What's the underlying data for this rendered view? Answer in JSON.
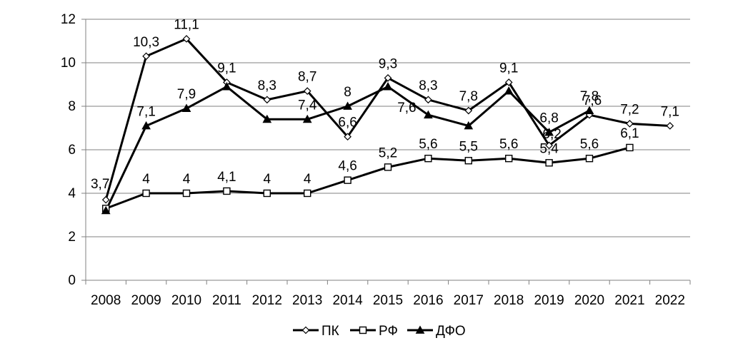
{
  "chart_data": {
    "type": "line",
    "x": [
      "2008",
      "2009",
      "2010",
      "2011",
      "2012",
      "2013",
      "2014",
      "2015",
      "2016",
      "2017",
      "2018",
      "2019",
      "2020",
      "2021",
      "2022"
    ],
    "ylim": [
      0,
      12
    ],
    "y_ticks": [
      "0",
      "2",
      "4",
      "6",
      "8",
      "10",
      "12"
    ],
    "grid": true,
    "legend_position": "bottom",
    "series": [
      {
        "name": "ПК",
        "marker": "diamond-open",
        "values": [
          3.7,
          10.3,
          11.1,
          9.1,
          8.3,
          8.7,
          6.6,
          9.3,
          8.3,
          7.8,
          9.1,
          6.2,
          7.6,
          7.2,
          7.1
        ],
        "labels": [
          "3,7",
          "10,3",
          "11,1",
          "9,1",
          "8,3",
          "8,7",
          "6,6",
          "9,3",
          "8,3",
          "7,8",
          "9,1",
          "6,2",
          "7,6",
          "7,2",
          "7,1"
        ]
      },
      {
        "name": "РФ",
        "marker": "square-open",
        "values": [
          3.3,
          4,
          4,
          4.1,
          4,
          4,
          4.6,
          5.2,
          5.6,
          5.5,
          5.6,
          5.4,
          5.6,
          6.1,
          null
        ],
        "labels": [
          "",
          "4",
          "4",
          "4,1",
          "4",
          "4",
          "4,6",
          "5,2",
          "5,6",
          "5,5",
          "5,6",
          "5,4",
          "5,6",
          "6,1",
          ""
        ]
      },
      {
        "name": "ДФО",
        "marker": "triangle-filled",
        "values": [
          3.2,
          7.1,
          7.9,
          8.9,
          7.4,
          7.4,
          8,
          8.9,
          7.6,
          7.1,
          8.7,
          6.8,
          7.8,
          null,
          null
        ],
        "labels": [
          "",
          "7,1",
          "7,9",
          "",
          "",
          "7,4",
          "8",
          "",
          "7,6",
          "",
          "",
          "6,8",
          "7,8",
          "",
          ""
        ]
      }
    ]
  },
  "colors": {
    "line": "#000000",
    "grid": "#808080",
    "background": "#ffffff"
  }
}
